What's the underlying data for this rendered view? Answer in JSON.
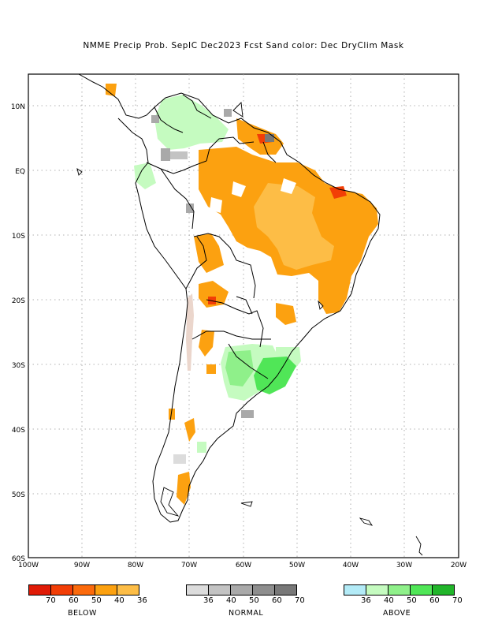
{
  "title": "NMME Precip Prob. SepIC  Dec2023 Fcst  Sand color: Dec DryClim Mask",
  "map": {
    "lat_labels": [
      "10N",
      "EQ",
      "10S",
      "20S",
      "30S",
      "40S",
      "50S",
      "60S"
    ],
    "lon_labels": [
      "100W",
      "90W",
      "80W",
      "70W",
      "60W",
      "50W",
      "40W",
      "30W",
      "20W"
    ]
  },
  "legend": {
    "below": {
      "caption": "BELOW",
      "colors": [
        "#e01b06",
        "#f23e06",
        "#fb6a0c",
        "#fca110",
        "#fdbd46"
      ],
      "ticks": [
        "70",
        "60",
        "50",
        "40",
        "36"
      ]
    },
    "normal": {
      "caption": "NORMAL",
      "colors": [
        "#dcdcdc",
        "#c3c3c3",
        "#a9a9a9",
        "#8e8e8e",
        "#787878"
      ],
      "ticks": [
        "36",
        "40",
        "50",
        "60",
        "70"
      ]
    },
    "above": {
      "caption": "ABOVE",
      "colors": [
        "#b3ebf7",
        "#c5fbc0",
        "#8ff08a",
        "#50e657",
        "#21b52a"
      ],
      "ticks": [
        "36",
        "40",
        "50",
        "60",
        "70"
      ]
    }
  },
  "colors": {
    "sand_mask": "#ebd6cc",
    "coastline": "#000000"
  }
}
